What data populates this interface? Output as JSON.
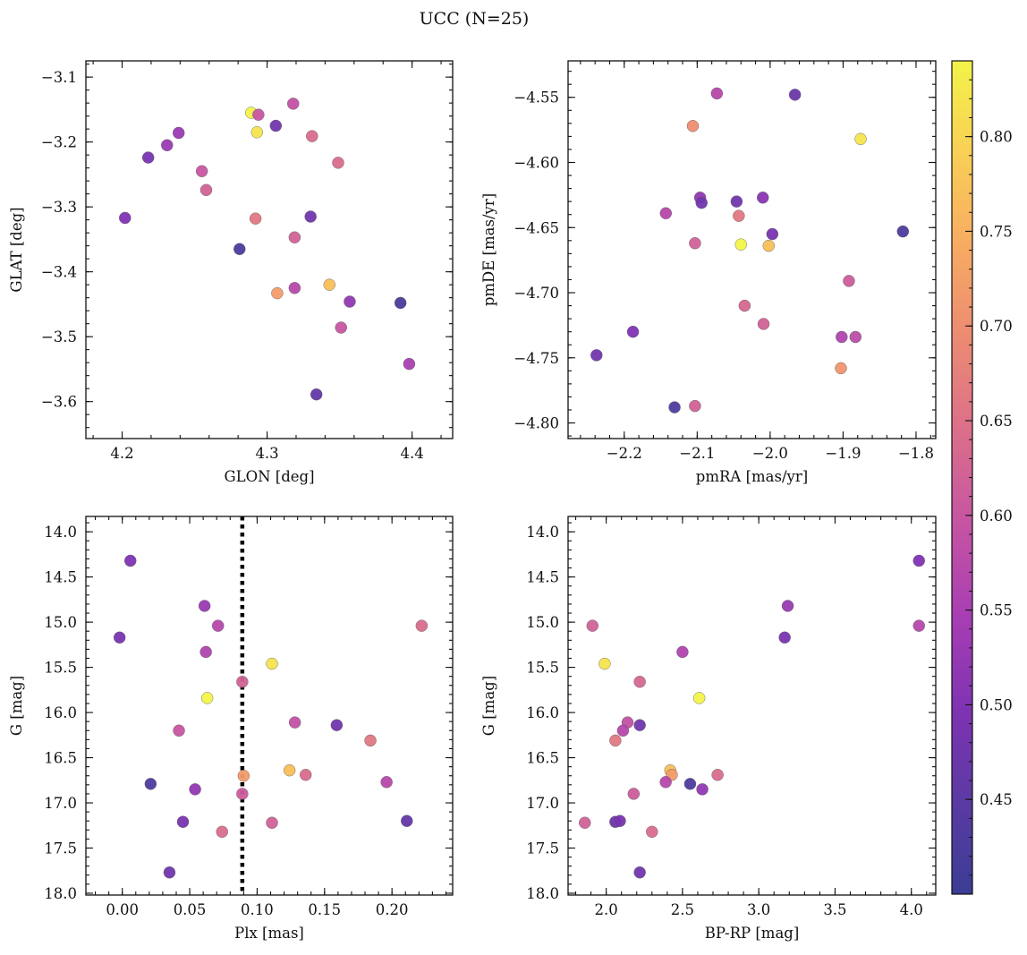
{
  "figure": {
    "title": "UCC (N=25)"
  },
  "colorbar": {
    "min": 0.4,
    "max": 0.84,
    "ticks": [
      0.45,
      0.5,
      0.55,
      0.6,
      0.65,
      0.7,
      0.75,
      0.8
    ],
    "tick_labels": [
      "0.45",
      "0.50",
      "0.55",
      "0.60",
      "0.65",
      "0.70",
      "0.75",
      "0.80"
    ],
    "colormap": "plasma",
    "stops": [
      "#3b3d95",
      "#5b3aa3",
      "#7f33b3",
      "#a83eb3",
      "#c654a3",
      "#db6f8a",
      "#ec8a73",
      "#f7ab62",
      "#f9cf56",
      "#f3f34a"
    ]
  },
  "chart_data": [
    {
      "type": "scatter",
      "xlabel": "GLON [deg]",
      "ylabel": "GLAT [deg]",
      "xlim": [
        4.175,
        4.428
      ],
      "ylim": [
        -3.657,
        -3.075
      ],
      "xticks": [
        4.2,
        4.3,
        4.4
      ],
      "xtick_labels": [
        "4.2",
        "4.3",
        "4.4"
      ],
      "yticks": [
        -3.1,
        -3.2,
        -3.3,
        -3.4,
        -3.5,
        -3.6
      ],
      "ytick_labels": [
        "−3.1",
        "−3.2",
        "−3.3",
        "−3.4",
        "−3.5",
        "−3.6"
      ],
      "points": [
        {
          "x": 4.202,
          "y": -3.317,
          "c": 0.5
        },
        {
          "x": 4.218,
          "y": -3.224,
          "c": 0.49
        },
        {
          "x": 4.231,
          "y": -3.205,
          "c": 0.53
        },
        {
          "x": 4.239,
          "y": -3.186,
          "c": 0.53
        },
        {
          "x": 4.255,
          "y": -3.245,
          "c": 0.6
        },
        {
          "x": 4.258,
          "y": -3.274,
          "c": 0.62
        },
        {
          "x": 4.281,
          "y": -3.365,
          "c": 0.43
        },
        {
          "x": 4.289,
          "y": -3.155,
          "c": 0.84
        },
        {
          "x": 4.293,
          "y": -3.185,
          "c": 0.82
        },
        {
          "x": 4.294,
          "y": -3.158,
          "c": 0.6
        },
        {
          "x": 4.292,
          "y": -3.318,
          "c": 0.66
        },
        {
          "x": 4.306,
          "y": -3.175,
          "c": 0.48
        },
        {
          "x": 4.307,
          "y": -3.433,
          "c": 0.72
        },
        {
          "x": 4.318,
          "y": -3.141,
          "c": 0.59
        },
        {
          "x": 4.319,
          "y": -3.347,
          "c": 0.62
        },
        {
          "x": 4.319,
          "y": -3.425,
          "c": 0.57
        },
        {
          "x": 4.33,
          "y": -3.315,
          "c": 0.48
        },
        {
          "x": 4.331,
          "y": -3.191,
          "c": 0.64
        },
        {
          "x": 4.334,
          "y": -3.589,
          "c": 0.46
        },
        {
          "x": 4.343,
          "y": -3.42,
          "c": 0.77
        },
        {
          "x": 4.349,
          "y": -3.232,
          "c": 0.64
        },
        {
          "x": 4.351,
          "y": -3.486,
          "c": 0.6
        },
        {
          "x": 4.357,
          "y": -3.446,
          "c": 0.52
        },
        {
          "x": 4.392,
          "y": -3.448,
          "c": 0.42
        },
        {
          "x": 4.398,
          "y": -3.542,
          "c": 0.55
        }
      ]
    },
    {
      "type": "scatter",
      "xlabel": "pmRA [mas/yr]",
      "ylabel": "pmDE [mas/yr]",
      "xlim": [
        -2.277,
        -1.773
      ],
      "ylim": [
        -4.812,
        -4.522
      ],
      "xticks": [
        -2.2,
        -2.1,
        -2.0,
        -1.9,
        -1.8
      ],
      "xtick_labels": [
        "−2.2",
        "−2.1",
        "−2.0",
        "−1.9",
        "−1.8"
      ],
      "yticks": [
        -4.55,
        -4.6,
        -4.65,
        -4.7,
        -4.75,
        -4.8
      ],
      "ytick_labels": [
        "−4.55",
        "−4.60",
        "−4.65",
        "−4.70",
        "−4.75",
        "−4.80"
      ],
      "points": [
        {
          "x": -2.238,
          "y": -4.748,
          "c": 0.48
        },
        {
          "x": -2.188,
          "y": -4.73,
          "c": 0.5
        },
        {
          "x": -2.143,
          "y": -4.639,
          "c": 0.57
        },
        {
          "x": -2.131,
          "y": -4.788,
          "c": 0.43
        },
        {
          "x": -2.106,
          "y": -4.572,
          "c": 0.7
        },
        {
          "x": -2.103,
          "y": -4.662,
          "c": 0.62
        },
        {
          "x": -2.103,
          "y": -4.787,
          "c": 0.62
        },
        {
          "x": -2.096,
          "y": -4.627,
          "c": 0.52
        },
        {
          "x": -2.094,
          "y": -4.631,
          "c": 0.48
        },
        {
          "x": -2.073,
          "y": -4.547,
          "c": 0.57
        },
        {
          "x": -2.046,
          "y": -4.63,
          "c": 0.48
        },
        {
          "x": -2.043,
          "y": -4.641,
          "c": 0.66
        },
        {
          "x": -2.04,
          "y": -4.663,
          "c": 0.84
        },
        {
          "x": -2.035,
          "y": -4.71,
          "c": 0.63
        },
        {
          "x": -2.01,
          "y": -4.627,
          "c": 0.51
        },
        {
          "x": -2.009,
          "y": -4.724,
          "c": 0.62
        },
        {
          "x": -2.002,
          "y": -4.664,
          "c": 0.77
        },
        {
          "x": -1.997,
          "y": -4.655,
          "c": 0.49
        },
        {
          "x": -1.966,
          "y": -4.548,
          "c": 0.47
        },
        {
          "x": -1.903,
          "y": -4.758,
          "c": 0.71
        },
        {
          "x": -1.902,
          "y": -4.734,
          "c": 0.56
        },
        {
          "x": -1.892,
          "y": -4.691,
          "c": 0.61
        },
        {
          "x": -1.883,
          "y": -4.734,
          "c": 0.58
        },
        {
          "x": -1.876,
          "y": -4.582,
          "c": 0.82
        },
        {
          "x": -1.818,
          "y": -4.653,
          "c": 0.43
        }
      ]
    },
    {
      "type": "scatter",
      "xlabel": "Plx [mas]",
      "ylabel": "G [mag]",
      "xlim": [
        -0.027,
        0.245
      ],
      "ylim": [
        18.02,
        13.83
      ],
      "xticks": [
        0.0,
        0.05,
        0.1,
        0.15,
        0.2
      ],
      "xtick_labels": [
        "0.00",
        "0.05",
        "0.10",
        "0.15",
        "0.20"
      ],
      "yticks": [
        14.0,
        14.5,
        15.0,
        15.5,
        16.0,
        16.5,
        17.0,
        17.5,
        18.0
      ],
      "ytick_labels": [
        "14.0",
        "14.5",
        "15.0",
        "15.5",
        "16.0",
        "16.5",
        "17.0",
        "17.5",
        "18.0"
      ],
      "vline": {
        "x": 0.089,
        "style": "dotted"
      },
      "points": [
        {
          "x": 0.006,
          "y": 14.32,
          "c": 0.5
        },
        {
          "x": -0.002,
          "y": 15.17,
          "c": 0.49
        },
        {
          "x": 0.061,
          "y": 14.82,
          "c": 0.53
        },
        {
          "x": 0.071,
          "y": 15.04,
          "c": 0.57
        },
        {
          "x": 0.062,
          "y": 15.33,
          "c": 0.56
        },
        {
          "x": 0.063,
          "y": 15.84,
          "c": 0.84
        },
        {
          "x": 0.089,
          "y": 15.66,
          "c": 0.62
        },
        {
          "x": 0.111,
          "y": 15.46,
          "c": 0.82
        },
        {
          "x": 0.222,
          "y": 15.04,
          "c": 0.64
        },
        {
          "x": 0.042,
          "y": 16.2,
          "c": 0.6
        },
        {
          "x": 0.128,
          "y": 16.11,
          "c": 0.59
        },
        {
          "x": 0.159,
          "y": 16.14,
          "c": 0.48
        },
        {
          "x": 0.184,
          "y": 16.31,
          "c": 0.66
        },
        {
          "x": 0.021,
          "y": 16.79,
          "c": 0.43
        },
        {
          "x": 0.054,
          "y": 16.85,
          "c": 0.52
        },
        {
          "x": 0.09,
          "y": 16.7,
          "c": 0.72
        },
        {
          "x": 0.089,
          "y": 16.9,
          "c": 0.61
        },
        {
          "x": 0.124,
          "y": 16.64,
          "c": 0.77
        },
        {
          "x": 0.136,
          "y": 16.69,
          "c": 0.64
        },
        {
          "x": 0.196,
          "y": 16.77,
          "c": 0.57
        },
        {
          "x": 0.045,
          "y": 17.21,
          "c": 0.49
        },
        {
          "x": 0.074,
          "y": 17.32,
          "c": 0.64
        },
        {
          "x": 0.111,
          "y": 17.22,
          "c": 0.62
        },
        {
          "x": 0.211,
          "y": 17.2,
          "c": 0.46
        },
        {
          "x": 0.035,
          "y": 17.77,
          "c": 0.48
        }
      ]
    },
    {
      "type": "scatter",
      "xlabel": "BP-RP [mag]",
      "ylabel": "G [mag]",
      "xlim": [
        1.75,
        4.16
      ],
      "ylim": [
        18.02,
        13.83
      ],
      "xticks": [
        2.0,
        2.5,
        3.0,
        3.5,
        4.0
      ],
      "xtick_labels": [
        "2.0",
        "2.5",
        "3.0",
        "3.5",
        "4.0"
      ],
      "yticks": [
        14.0,
        14.5,
        15.0,
        15.5,
        16.0,
        16.5,
        17.0,
        17.5,
        18.0
      ],
      "ytick_labels": [
        "14.0",
        "14.5",
        "15.0",
        "15.5",
        "16.0",
        "16.5",
        "17.0",
        "17.5",
        "18.0"
      ],
      "points": [
        {
          "x": 4.05,
          "y": 14.32,
          "c": 0.5
        },
        {
          "x": 3.19,
          "y": 14.82,
          "c": 0.53
        },
        {
          "x": 3.17,
          "y": 15.17,
          "c": 0.49
        },
        {
          "x": 4.05,
          "y": 15.04,
          "c": 0.57
        },
        {
          "x": 1.91,
          "y": 15.04,
          "c": 0.62
        },
        {
          "x": 2.5,
          "y": 15.33,
          "c": 0.56
        },
        {
          "x": 1.99,
          "y": 15.46,
          "c": 0.82
        },
        {
          "x": 2.22,
          "y": 15.66,
          "c": 0.63
        },
        {
          "x": 2.61,
          "y": 15.84,
          "c": 0.84
        },
        {
          "x": 2.14,
          "y": 16.11,
          "c": 0.59
        },
        {
          "x": 2.22,
          "y": 16.14,
          "c": 0.48
        },
        {
          "x": 2.11,
          "y": 16.2,
          "c": 0.57
        },
        {
          "x": 2.06,
          "y": 16.31,
          "c": 0.66
        },
        {
          "x": 2.42,
          "y": 16.64,
          "c": 0.77
        },
        {
          "x": 2.43,
          "y": 16.69,
          "c": 0.72
        },
        {
          "x": 2.73,
          "y": 16.69,
          "c": 0.64
        },
        {
          "x": 2.39,
          "y": 16.77,
          "c": 0.57
        },
        {
          "x": 2.55,
          "y": 16.79,
          "c": 0.43
        },
        {
          "x": 2.63,
          "y": 16.85,
          "c": 0.52
        },
        {
          "x": 2.18,
          "y": 16.9,
          "c": 0.61
        },
        {
          "x": 1.86,
          "y": 17.22,
          "c": 0.62
        },
        {
          "x": 2.06,
          "y": 17.21,
          "c": 0.47
        },
        {
          "x": 2.09,
          "y": 17.2,
          "c": 0.49
        },
        {
          "x": 2.3,
          "y": 17.32,
          "c": 0.64
        },
        {
          "x": 2.22,
          "y": 17.77,
          "c": 0.48
        }
      ]
    }
  ]
}
